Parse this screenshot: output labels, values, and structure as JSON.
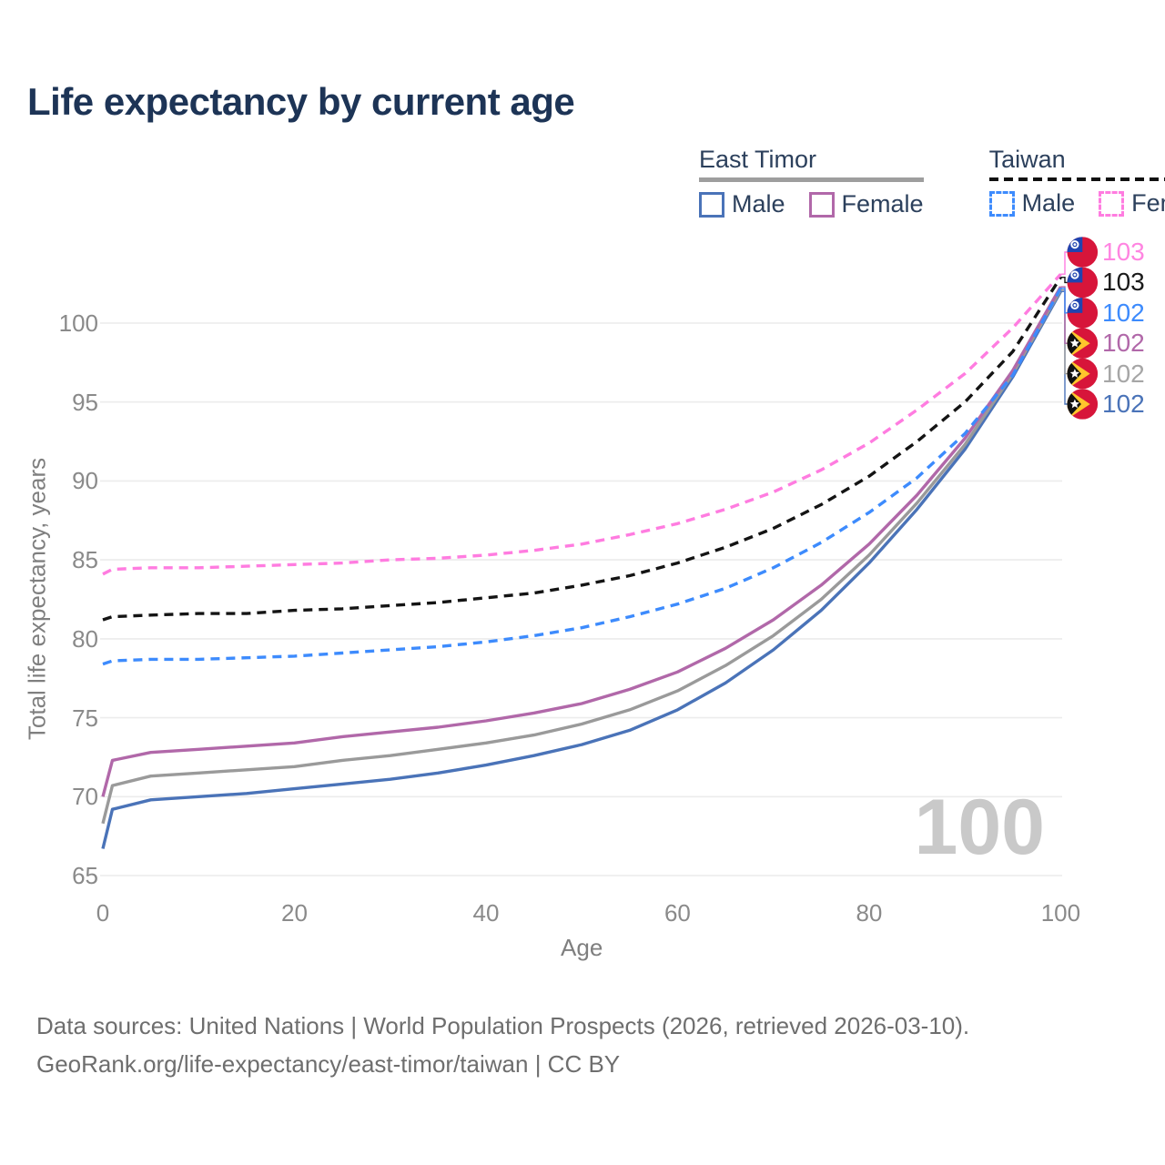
{
  "title": "Life expectancy by current age",
  "watermark_age": "100",
  "legend": {
    "groups": [
      {
        "name": "East Timor",
        "line_style": "solid",
        "items": [
          {
            "label": "Male",
            "color": "#4a73b8"
          },
          {
            "label": "Female",
            "color": "#b168a9"
          }
        ]
      },
      {
        "name": "Taiwan",
        "line_style": "dashed",
        "items": [
          {
            "label": "Male",
            "color": "#3d8bfd"
          },
          {
            "label": "Female",
            "color": "#ff7ce0"
          }
        ]
      }
    ]
  },
  "chart_data": {
    "type": "line",
    "title": "Life expectancy by current age",
    "xlabel": "Age",
    "ylabel": "Total life expectancy, years",
    "xlim": [
      0,
      100
    ],
    "ylim": [
      65,
      104
    ],
    "x_ticks": [
      0,
      20,
      40,
      60,
      80,
      100
    ],
    "y_ticks": [
      65,
      70,
      75,
      80,
      85,
      90,
      95,
      100
    ],
    "grid": "horizontal-only",
    "legend_position": "top-right",
    "ages": [
      0,
      1,
      5,
      10,
      15,
      20,
      25,
      30,
      35,
      40,
      45,
      50,
      55,
      60,
      65,
      70,
      75,
      80,
      85,
      90,
      95,
      100
    ],
    "series": [
      {
        "name": "East Timor Male",
        "country": "East Timor",
        "sex": "Male",
        "color": "#4a73b8",
        "dash": false,
        "flag_icon": "east-timor-flag-icon",
        "end_label": "102",
        "end_label_color": "#4a73b8",
        "end_row": 5,
        "values": [
          66.7,
          69.2,
          69.8,
          70.0,
          70.2,
          70.5,
          70.8,
          71.1,
          71.5,
          72.0,
          72.6,
          73.3,
          74.2,
          75.5,
          77.2,
          79.3,
          81.8,
          84.8,
          88.2,
          92.0,
          96.6,
          102.0
        ]
      },
      {
        "name": "East Timor",
        "country": "East Timor",
        "sex": "",
        "color": "#9a9a9a",
        "dash": false,
        "flag_icon": "east-timor-flag-icon",
        "end_label": "102",
        "end_label_color": "#a6a6a6",
        "end_row": 4,
        "values": [
          68.3,
          70.7,
          71.3,
          71.5,
          71.7,
          71.9,
          72.3,
          72.6,
          73.0,
          73.4,
          73.9,
          74.6,
          75.5,
          76.7,
          78.3,
          80.2,
          82.5,
          85.3,
          88.6,
          92.3,
          96.8,
          102.1
        ]
      },
      {
        "name": "East Timor Female",
        "country": "East Timor",
        "sex": "Female",
        "color": "#b168a9",
        "dash": false,
        "flag_icon": "east-timor-flag-icon",
        "end_label": "102",
        "end_label_color": "#b168a9",
        "end_row": 3,
        "values": [
          70.0,
          72.3,
          72.8,
          73.0,
          73.2,
          73.4,
          73.8,
          74.1,
          74.4,
          74.8,
          75.3,
          75.9,
          76.8,
          77.9,
          79.4,
          81.2,
          83.4,
          86.0,
          89.1,
          92.7,
          97.0,
          102.3
        ]
      },
      {
        "name": "Taiwan Male",
        "country": "Taiwan",
        "sex": "Male",
        "color": "#3d8bfd",
        "dash": true,
        "flag_icon": "taiwan-flag-icon",
        "end_label": "102",
        "end_label_color": "#3d8bfd",
        "end_row": 2,
        "values": [
          78.4,
          78.6,
          78.7,
          78.7,
          78.8,
          78.9,
          79.1,
          79.3,
          79.5,
          79.8,
          80.2,
          80.7,
          81.4,
          82.2,
          83.2,
          84.5,
          86.1,
          88.0,
          90.2,
          93.0,
          96.7,
          102.2
        ]
      },
      {
        "name": "Taiwan",
        "country": "Taiwan",
        "sex": "",
        "color": "#141414",
        "dash": true,
        "flag_icon": "taiwan-flag-icon",
        "end_label": "103",
        "end_label_color": "#1a1a1a",
        "end_row": 1,
        "values": [
          81.2,
          81.4,
          81.5,
          81.6,
          81.6,
          81.8,
          81.9,
          82.1,
          82.3,
          82.6,
          82.9,
          83.4,
          84.0,
          84.8,
          85.8,
          87.0,
          88.5,
          90.3,
          92.5,
          95.0,
          98.2,
          102.9
        ]
      },
      {
        "name": "Taiwan Female",
        "country": "Taiwan",
        "sex": "Female",
        "color": "#ff7ce0",
        "dash": true,
        "flag_icon": "taiwan-flag-icon",
        "end_label": "103",
        "end_label_color": "#ff85e1",
        "end_row": 0,
        "values": [
          84.1,
          84.4,
          84.5,
          84.5,
          84.6,
          84.7,
          84.8,
          85.0,
          85.1,
          85.3,
          85.6,
          86.0,
          86.6,
          87.3,
          88.2,
          89.3,
          90.7,
          92.4,
          94.5,
          96.8,
          99.7,
          103.1
        ]
      }
    ]
  },
  "footer": {
    "line1": "Data sources: United Nations | World Population Prospects (2026, retrieved 2026-03-10).",
    "line2": "GeoRank.org/life-expectancy/east-timor/taiwan | CC BY"
  }
}
